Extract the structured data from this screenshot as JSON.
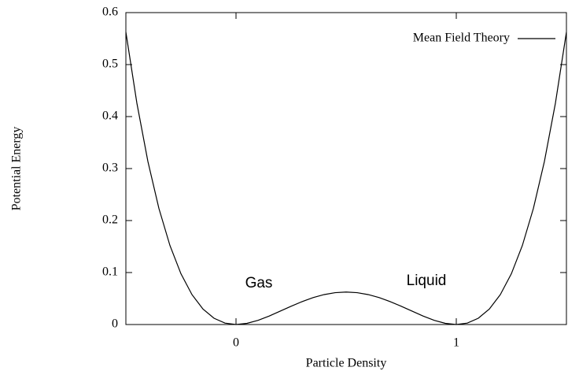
{
  "chart_data": {
    "type": "line",
    "x_label": "Particle Density",
    "y_label": "Potential Energy",
    "x": [
      -0.5,
      -0.45,
      -0.4,
      -0.35,
      -0.3,
      -0.25,
      -0.2,
      -0.15,
      -0.1,
      -0.05,
      0,
      0.05,
      0.1,
      0.15,
      0.2,
      0.25,
      0.3,
      0.35,
      0.4,
      0.45,
      0.5,
      0.55,
      0.6,
      0.65,
      0.7,
      0.75,
      0.8,
      0.85,
      0.9,
      0.95,
      1,
      1.05,
      1.1,
      1.15,
      1.2,
      1.25,
      1.3,
      1.35,
      1.4,
      1.45,
      1.5
    ],
    "series": [
      {
        "name": "Mean Field Theory",
        "color": "#000000",
        "values": [
          0.5625,
          0.42576,
          0.3136,
          0.22326,
          0.1521,
          0.09766,
          0.0576,
          0.02976,
          0.0121,
          0.00276,
          0,
          0.00226,
          0.0081,
          0.01626,
          0.0256,
          0.03516,
          0.0441,
          0.05176,
          0.0576,
          0.06126,
          0.0625,
          0.06126,
          0.0576,
          0.05176,
          0.0441,
          0.03516,
          0.0256,
          0.01626,
          0.0081,
          0.00226,
          0,
          0.00276,
          0.0121,
          0.02976,
          0.0576,
          0.09766,
          0.1521,
          0.22326,
          0.3136,
          0.42576,
          0.5625
        ]
      }
    ],
    "xlim": [
      -0.5,
      1.5
    ],
    "ylim": [
      0,
      0.6
    ],
    "xticks": [
      0,
      1
    ],
    "yticks": [
      0,
      0.1,
      0.2,
      0.3,
      0.4,
      0.5,
      0.6
    ],
    "legend": "upper right",
    "annotations": [
      {
        "text": "Gas"
      },
      {
        "text": "Liquid"
      }
    ]
  }
}
